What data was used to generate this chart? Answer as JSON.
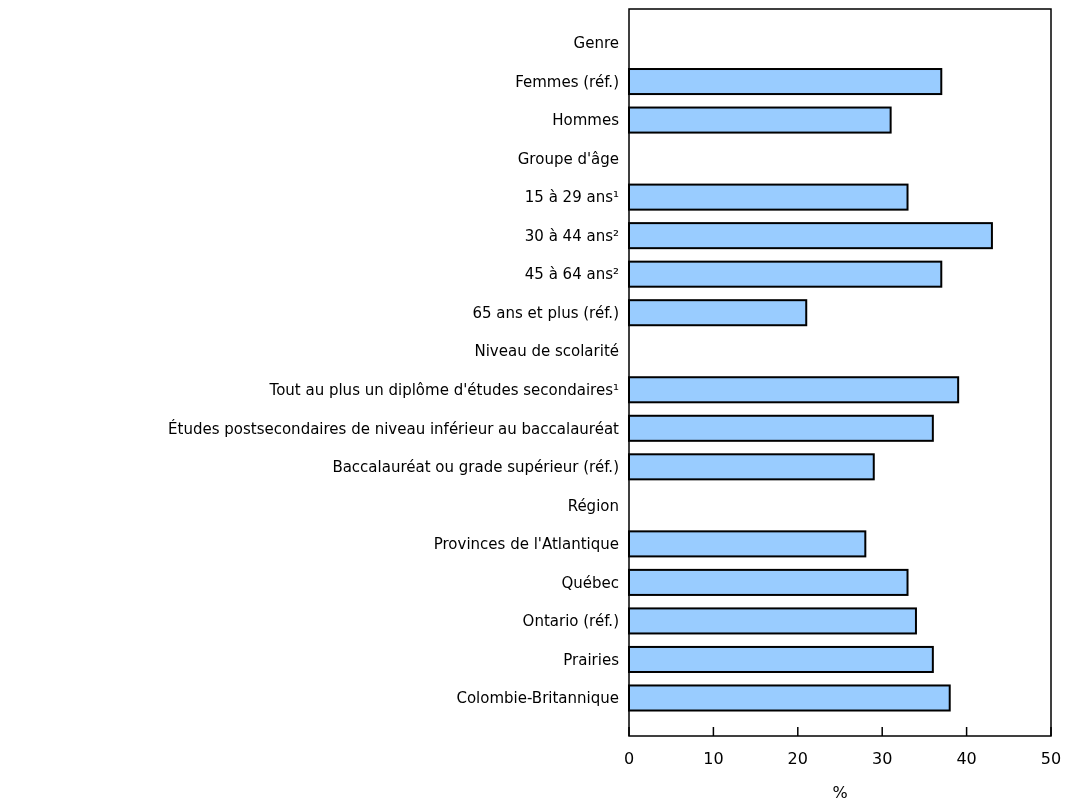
{
  "chart_data": {
    "type": "bar",
    "orientation": "horizontal",
    "xlabel": "%",
    "categories": [
      "Genre",
      "Femmes (réf.)",
      "Hommes",
      "Groupe d'âge",
      "15 à 29 ans¹",
      "30 à 44 ans²",
      "45 à 64 ans²",
      "65 ans et plus (réf.)",
      "Niveau de scolarité",
      "Tout au plus un diplôme d'études secondaires¹",
      "Études postsecondaires de niveau inférieur au baccalauréat",
      "Baccalauréat ou grade supérieur (réf.)",
      "Région",
      "Provinces de l'Atlantique",
      "Québec",
      "Ontario (réf.)",
      "Prairies",
      "Colombie-Britannique"
    ],
    "values": [
      null,
      37,
      31,
      null,
      33,
      43,
      37,
      21,
      null,
      39,
      36,
      29,
      null,
      28,
      33,
      34,
      36,
      38
    ],
    "color": "#99ccff",
    "xlim": [
      0,
      50
    ],
    "xticks": [
      0,
      10,
      20,
      30,
      40,
      50
    ]
  }
}
